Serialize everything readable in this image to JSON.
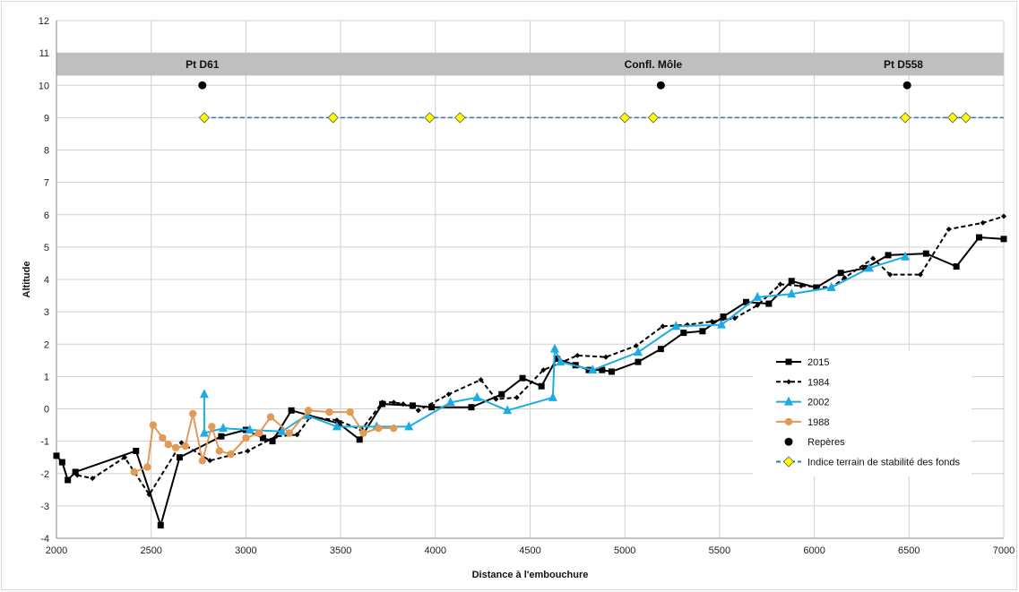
{
  "chart_data": {
    "type": "line",
    "xlabel": "Distance à l'embouchure",
    "ylabel": "Altitude",
    "xlim": [
      2000,
      7000
    ],
    "ylim": [
      -4,
      12
    ],
    "x_ticks": [
      2000,
      2500,
      3000,
      3500,
      4000,
      4500,
      5000,
      5500,
      6000,
      6500,
      7000
    ],
    "y_ticks": [
      -4,
      -3,
      -2,
      -1,
      0,
      1,
      2,
      3,
      4,
      5,
      6,
      7,
      8,
      9,
      10,
      11,
      12
    ],
    "grid": true,
    "legend_position": "right",
    "band": {
      "y_from": 10.3,
      "y_to": 11,
      "color": "#bfbfbf"
    },
    "reference_labels": [
      {
        "x": 2770,
        "text": "Pt D61"
      },
      {
        "x": 5150,
        "text": "Confl. Môle"
      },
      {
        "x": 6470,
        "text": "Pt D558"
      }
    ],
    "series": [
      {
        "name": "2015",
        "style": "solid",
        "marker": "square",
        "color": "#000000",
        "x": [
          2000,
          2030,
          2060,
          2100,
          2420,
          2550,
          2650,
          2870,
          3000,
          3090,
          3140,
          3240,
          3490,
          3600,
          3720,
          3880,
          3980,
          4190,
          4350,
          4460,
          4560,
          4640,
          4740,
          4810,
          4880,
          4930,
          5070,
          5190,
          5310,
          5410,
          5520,
          5640,
          5760,
          5880,
          6010,
          6140,
          6270,
          6390,
          6590,
          6750,
          6870,
          7000
        ],
        "y": [
          -1.45,
          -1.65,
          -2.2,
          -1.95,
          -1.3,
          -3.6,
          -1.5,
          -0.85,
          -0.65,
          -0.9,
          -1.0,
          -0.05,
          -0.45,
          -0.95,
          0.15,
          0.1,
          0.05,
          0.05,
          0.45,
          0.95,
          0.7,
          1.55,
          1.35,
          1.2,
          1.2,
          1.15,
          1.45,
          1.85,
          2.35,
          2.4,
          2.85,
          3.3,
          3.25,
          3.95,
          3.75,
          4.2,
          4.35,
          4.75,
          4.8,
          4.4,
          5.3,
          5.25
        ]
      },
      {
        "name": "1984",
        "style": "dashed",
        "marker": "small-diamond",
        "color": "#000000",
        "x": [
          2110,
          2190,
          2360,
          2490,
          2660,
          2810,
          3010,
          3160,
          3270,
          3340,
          3480,
          3610,
          3720,
          3780,
          3830,
          3910,
          4070,
          4240,
          4320,
          4430,
          4570,
          4750,
          4900,
          5060,
          5200,
          5330,
          5460,
          5580,
          5700,
          5820,
          5930,
          6090,
          6160,
          6310,
          6400,
          6560,
          6710,
          6890,
          7000
        ],
        "y": [
          -2.05,
          -2.15,
          -1.5,
          -2.65,
          -1.05,
          -1.6,
          -1.3,
          -0.85,
          -0.8,
          -0.25,
          -0.35,
          -0.65,
          0.2,
          0.2,
          0.15,
          -0.05,
          0.45,
          0.9,
          0.3,
          0.35,
          1.2,
          1.65,
          1.6,
          1.95,
          2.55,
          2.6,
          2.7,
          2.8,
          3.2,
          3.85,
          3.8,
          3.75,
          4.05,
          4.65,
          4.15,
          4.15,
          5.55,
          5.75,
          5.95
        ]
      },
      {
        "name": "2002",
        "style": "solid",
        "marker": "triangle",
        "color": "#1cace3",
        "x": [
          2780,
          2780,
          2880,
          3020,
          3190,
          3320,
          3480,
          3690,
          3860,
          4080,
          4220,
          4380,
          4620,
          4630,
          4660,
          4830,
          5070,
          5270,
          5510,
          5700,
          5880,
          6090,
          6290,
          6480
        ],
        "y": [
          0.45,
          -0.75,
          -0.6,
          -0.65,
          -0.7,
          -0.2,
          -0.55,
          -0.55,
          -0.55,
          0.2,
          0.35,
          -0.05,
          0.35,
          1.85,
          1.45,
          1.2,
          1.75,
          2.55,
          2.6,
          3.45,
          3.55,
          3.75,
          4.35,
          4.7
        ]
      },
      {
        "name": "1988",
        "style": "solid",
        "marker": "circle",
        "color": "#e29a55",
        "x": [
          2410,
          2480,
          2510,
          2560,
          2590,
          2630,
          2680,
          2720,
          2770,
          2820,
          2860,
          2920,
          3000,
          3070,
          3130,
          3230,
          3330,
          3440,
          3550,
          3620,
          3700,
          3780
        ],
        "y": [
          -1.95,
          -1.8,
          -0.5,
          -0.9,
          -1.1,
          -1.2,
          -1.15,
          -0.15,
          -1.6,
          -0.55,
          -1.3,
          -1.4,
          -0.9,
          -0.75,
          -0.25,
          -0.75,
          -0.05,
          -0.1,
          -0.1,
          -0.75,
          -0.6,
          -0.6
        ]
      },
      {
        "name": "Repères",
        "style": "none",
        "marker": "big-circle",
        "color": "#000000",
        "x": [
          2770,
          5190,
          6490
        ],
        "y": [
          10,
          10,
          10
        ]
      },
      {
        "name": "Indice terrain de stabilité des fonds",
        "style": "dashed",
        "marker": "diamond",
        "color": "#2e75b6",
        "marker_fill": "#ffff00",
        "line_x_end": 7000,
        "x": [
          2780,
          3460,
          3970,
          4130,
          5000,
          5150,
          6480,
          6730,
          6800
        ],
        "y": [
          9,
          9,
          9,
          9,
          9,
          9,
          9,
          9,
          9
        ]
      }
    ]
  }
}
